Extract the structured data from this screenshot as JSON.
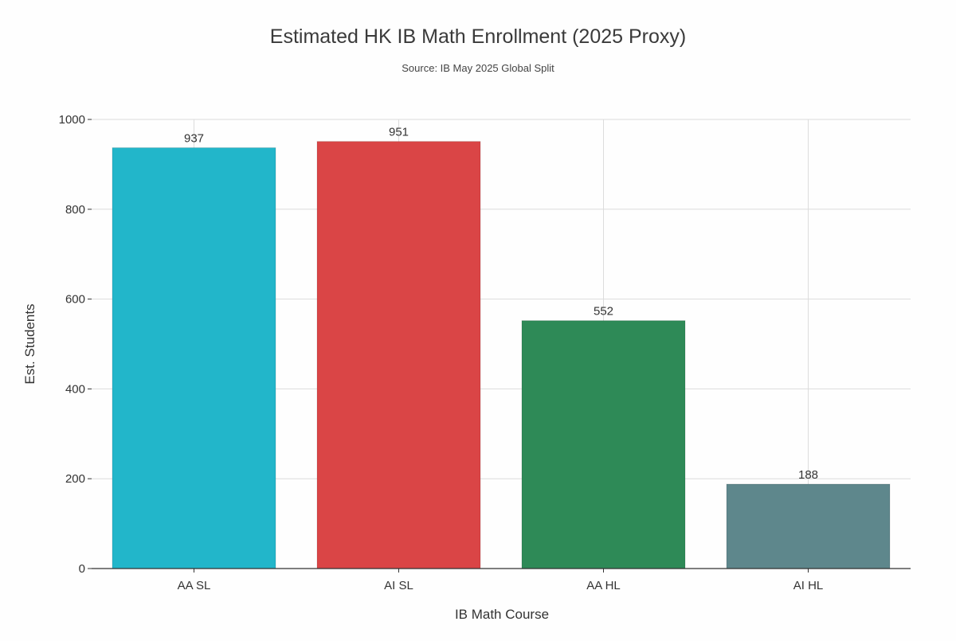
{
  "chart_data": {
    "type": "bar",
    "title": "Estimated HK IB Math Enrollment (2025 Proxy)",
    "subtitle": "Source: IB May 2025 Global Split",
    "xlabel": "IB Math Course",
    "ylabel": "Est. Students",
    "categories": [
      "AA SL",
      "AI SL",
      "AA HL",
      "AI HL"
    ],
    "values": [
      937,
      951,
      552,
      188
    ],
    "data_labels": [
      "937",
      "951",
      "552",
      "188"
    ],
    "colors": [
      "#22b6ca",
      "#da4546",
      "#2e8a57",
      "#5e878c"
    ],
    "ylim": [
      0,
      1000
    ],
    "yticks": [
      0,
      200,
      400,
      600,
      800,
      1000
    ],
    "ytick_labels": [
      "0",
      "200",
      "400",
      "600",
      "800",
      "1000"
    ],
    "grid": true,
    "legend": "none"
  }
}
